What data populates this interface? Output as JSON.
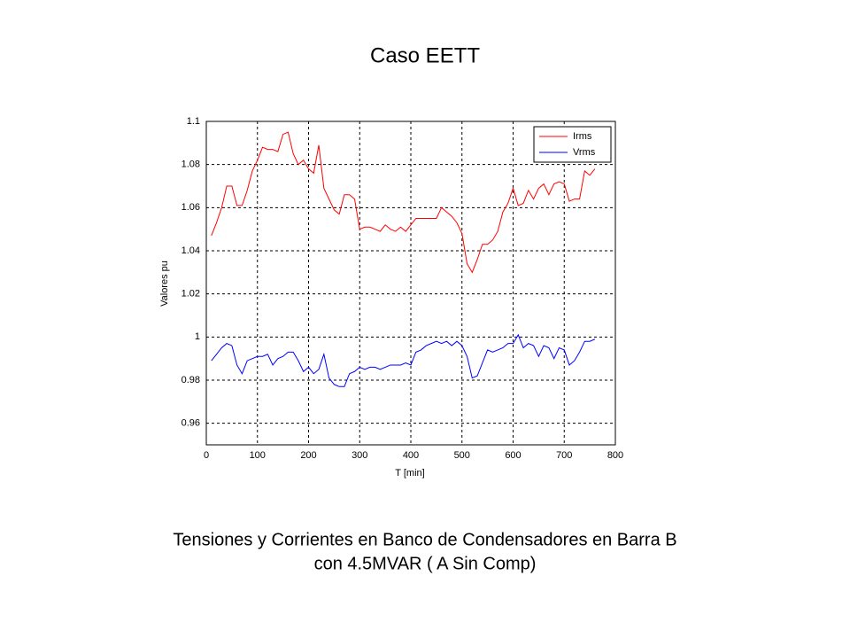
{
  "chart_data": {
    "type": "line",
    "title": "Caso EETT",
    "xlabel": "T [min]",
    "ylabel": "Valores pu",
    "x": [
      10,
      20,
      30,
      40,
      50,
      60,
      70,
      80,
      90,
      100,
      110,
      120,
      130,
      140,
      150,
      160,
      170,
      180,
      190,
      200,
      210,
      220,
      230,
      240,
      250,
      260,
      270,
      280,
      290,
      300,
      310,
      320,
      330,
      340,
      350,
      360,
      370,
      380,
      390,
      400,
      410,
      420,
      430,
      440,
      450,
      460,
      470,
      480,
      490,
      500,
      510,
      520,
      530,
      540,
      550,
      560,
      570,
      580,
      590,
      600,
      610,
      620,
      630,
      640,
      650,
      660,
      670,
      680,
      690,
      700,
      710,
      720,
      730,
      740,
      750,
      760
    ],
    "series": [
      {
        "name": "Irms",
        "color": "#ff0000",
        "values": [
          1.047,
          1.053,
          1.06,
          1.07,
          1.07,
          1.061,
          1.061,
          1.068,
          1.077,
          1.082,
          1.088,
          1.087,
          1.087,
          1.086,
          1.094,
          1.095,
          1.085,
          1.08,
          1.082,
          1.078,
          1.076,
          1.089,
          1.069,
          1.064,
          1.059,
          1.057,
          1.066,
          1.066,
          1.064,
          1.05,
          1.051,
          1.051,
          1.05,
          1.049,
          1.052,
          1.05,
          1.049,
          1.051,
          1.049,
          1.052,
          1.055,
          1.055,
          1.055,
          1.055,
          1.055,
          1.06,
          1.058,
          1.056,
          1.053,
          1.048,
          1.034,
          1.03,
          1.036,
          1.043,
          1.043,
          1.045,
          1.049,
          1.058,
          1.062,
          1.069,
          1.061,
          1.062,
          1.068,
          1.064,
          1.069,
          1.071,
          1.066,
          1.071,
          1.072,
          1.071,
          1.063,
          1.064,
          1.064,
          1.077,
          1.075,
          1.078
        ]
      },
      {
        "name": "Vrms",
        "color": "#0000ff",
        "values": [
          0.989,
          0.992,
          0.995,
          0.997,
          0.996,
          0.987,
          0.983,
          0.989,
          0.99,
          0.991,
          0.991,
          0.992,
          0.987,
          0.99,
          0.991,
          0.993,
          0.993,
          0.989,
          0.984,
          0.986,
          0.983,
          0.985,
          0.992,
          0.981,
          0.978,
          0.977,
          0.977,
          0.983,
          0.984,
          0.986,
          0.985,
          0.986,
          0.986,
          0.985,
          0.986,
          0.987,
          0.987,
          0.987,
          0.988,
          0.987,
          0.993,
          0.994,
          0.996,
          0.997,
          0.998,
          0.997,
          0.998,
          0.996,
          0.998,
          0.996,
          0.991,
          0.981,
          0.982,
          0.988,
          0.994,
          0.993,
          0.994,
          0.995,
          0.997,
          0.997,
          1.001,
          0.995,
          0.997,
          0.996,
          0.991,
          0.996,
          0.995,
          0.99,
          0.995,
          0.994,
          0.987,
          0.989,
          0.993,
          0.998,
          0.998,
          0.999
        ]
      }
    ],
    "xlim": [
      0,
      800
    ],
    "xticks": [
      0,
      100,
      200,
      300,
      400,
      500,
      600,
      700,
      800
    ],
    "ylim": [
      0.95,
      1.1
    ],
    "yticks": [
      0.96,
      0.98,
      1,
      1.02,
      1.04,
      1.06,
      1.08,
      1.1
    ],
    "grid": true,
    "legend": "upper right"
  },
  "caption": [
    "Tensiones y Corrientes en Banco de Condensadores en Barra B",
    "con 4.5MVAR ( A Sin Comp)"
  ]
}
